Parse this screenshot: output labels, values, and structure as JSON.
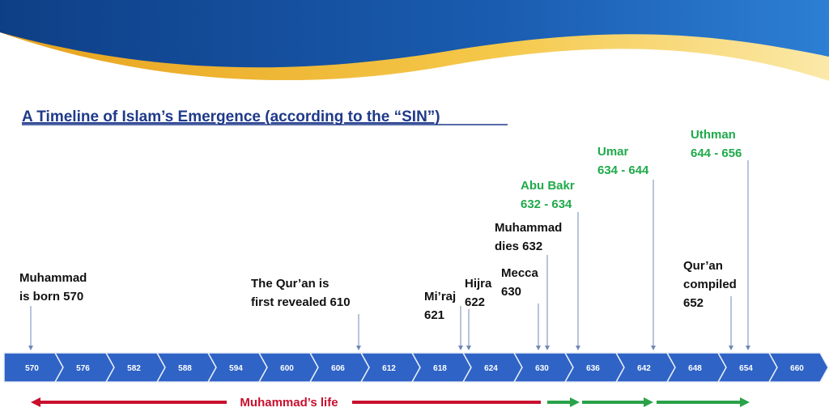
{
  "title": "A Timeline of Islam’s Emergence (according to the “SIN”)",
  "timeline": {
    "ticks": [
      "570",
      "576",
      "582",
      "588",
      "594",
      "600",
      "606",
      "612",
      "618",
      "624",
      "630",
      "636",
      "642",
      "648",
      "654",
      "660"
    ]
  },
  "events": [
    {
      "lines": [
        "Muhammad",
        "is born 570"
      ]
    },
    {
      "lines": [
        "The Qur’an is",
        "first revealed 610"
      ]
    },
    {
      "lines": [
        "Mi’raj",
        "621"
      ]
    },
    {
      "lines": [
        "Hijra",
        "622"
      ]
    },
    {
      "lines": [
        "Mecca",
        "630"
      ]
    },
    {
      "lines": [
        "Muhammad",
        "dies 632"
      ]
    },
    {
      "lines": [
        "Abu Bakr",
        "632 - 634"
      ]
    },
    {
      "lines": [
        "Umar",
        "634 - 644"
      ]
    },
    {
      "lines": [
        "Uthman",
        "644 - 656"
      ]
    },
    {
      "lines": [
        "Qur’an",
        "compiled",
        "652"
      ]
    }
  ],
  "life_label": "Muhammad’s life"
}
